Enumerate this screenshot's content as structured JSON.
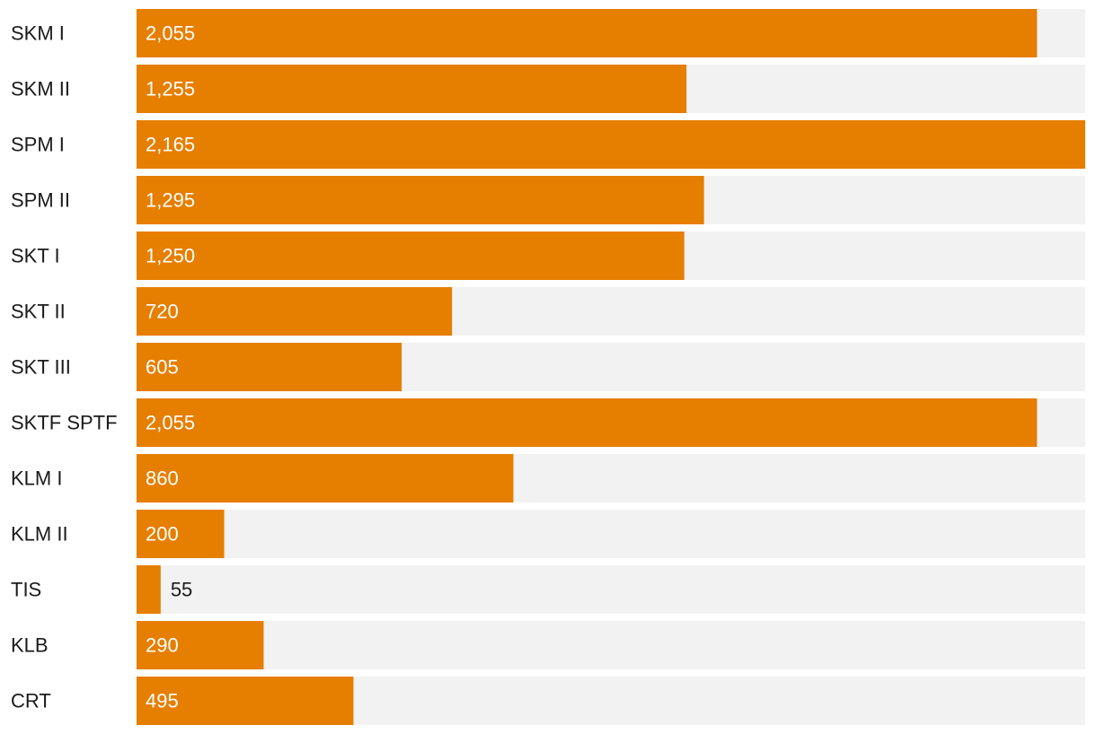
{
  "chart_data": {
    "type": "bar",
    "orientation": "horizontal",
    "categories": [
      "SKM I",
      "SKM II",
      "SPM I",
      "SPM II",
      "SKT I",
      "SKT II",
      "SKT III",
      "SKTF SPTF",
      "KLM I",
      "KLM II",
      "TIS",
      "KLB",
      "CRT"
    ],
    "values": [
      2055,
      1255,
      2165,
      1295,
      1250,
      720,
      605,
      2055,
      860,
      200,
      55,
      290,
      495
    ],
    "value_labels": [
      "2,055",
      "1,255",
      "2,165",
      "1,295",
      "1,250",
      "720",
      "605",
      "2,055",
      "860",
      "200",
      "55",
      "290",
      "495"
    ],
    "title": "",
    "xlabel": "",
    "ylabel": "",
    "xlim": [
      0,
      2165
    ],
    "grid": false,
    "legend": "none"
  },
  "colors": {
    "bar": "#e67e00",
    "track": "#f2f2f2",
    "label_inside": "#ffffff",
    "label_outside": "#1a1a1a"
  }
}
